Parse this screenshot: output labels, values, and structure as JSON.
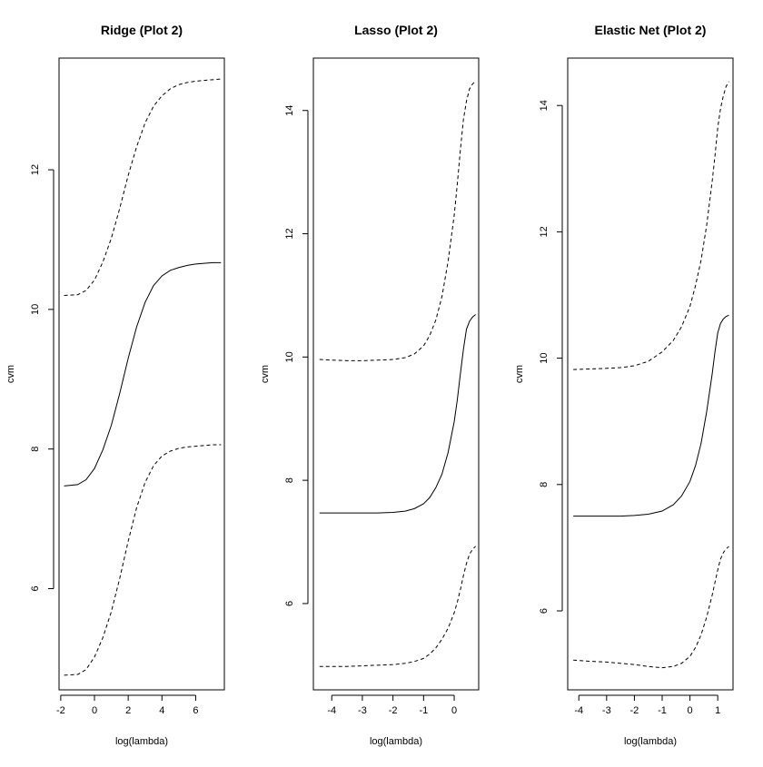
{
  "chart_data": [
    {
      "type": "line",
      "title": "Ridge (Plot 2)",
      "xlabel": "log(lambda)",
      "ylabel": "cvm",
      "xlim": [
        -2.1,
        7.7
      ],
      "ylim": [
        4.55,
        13.6
      ],
      "x_ticks": [
        -2,
        0,
        2,
        4,
        6
      ],
      "y_ticks": [
        6,
        8,
        10,
        12
      ],
      "grid": false,
      "legend": "none",
      "series": [
        {
          "style": "dashed",
          "x": [
            -1.8,
            -1.0,
            -0.5,
            0.0,
            0.5,
            1.0,
            1.5,
            2.0,
            2.5,
            3.0,
            3.5,
            4.0,
            4.5,
            5.0,
            5.5,
            6.0,
            6.5,
            7.0,
            7.5
          ],
          "y": [
            10.2,
            10.21,
            10.27,
            10.42,
            10.68,
            11.02,
            11.45,
            11.92,
            12.33,
            12.67,
            12.91,
            13.06,
            13.16,
            13.22,
            13.25,
            13.27,
            13.28,
            13.29,
            13.3
          ]
        },
        {
          "style": "solid",
          "x": [
            -1.8,
            -1.0,
            -0.5,
            0.0,
            0.5,
            1.0,
            1.5,
            2.0,
            2.5,
            3.0,
            3.5,
            4.0,
            4.5,
            5.0,
            5.5,
            6.0,
            6.5,
            7.0,
            7.5
          ],
          "y": [
            7.47,
            7.49,
            7.56,
            7.72,
            7.99,
            8.34,
            8.8,
            9.3,
            9.75,
            10.1,
            10.34,
            10.48,
            10.56,
            10.6,
            10.63,
            10.65,
            10.66,
            10.67,
            10.67
          ]
        },
        {
          "style": "dashed",
          "x": [
            -1.8,
            -1.0,
            -0.5,
            0.0,
            0.5,
            1.0,
            1.5,
            2.0,
            2.5,
            3.0,
            3.5,
            4.0,
            4.5,
            5.0,
            5.5,
            6.0,
            6.5,
            7.0,
            7.5
          ],
          "y": [
            4.76,
            4.77,
            4.84,
            5.02,
            5.3,
            5.67,
            6.15,
            6.68,
            7.16,
            7.52,
            7.76,
            7.9,
            7.97,
            8.01,
            8.03,
            8.04,
            8.05,
            8.06,
            8.06
          ]
        }
      ]
    },
    {
      "type": "line",
      "title": "Lasso (Plot 2)",
      "xlabel": "log(lambda)",
      "ylabel": "cvm",
      "xlim": [
        -4.6,
        0.8
      ],
      "ylim": [
        4.6,
        14.85
      ],
      "x_ticks": [
        -4,
        -3,
        -2,
        -1,
        0
      ],
      "y_ticks": [
        6,
        8,
        10,
        12,
        14
      ],
      "grid": false,
      "legend": "none",
      "series": [
        {
          "style": "dashed",
          "x": [
            -4.4,
            -4.0,
            -3.5,
            -3.0,
            -2.5,
            -2.0,
            -1.6,
            -1.3,
            -1.0,
            -0.8,
            -0.6,
            -0.4,
            -0.2,
            0.0,
            0.1,
            0.2,
            0.3,
            0.4,
            0.5,
            0.6,
            0.7
          ],
          "y": [
            9.96,
            9.95,
            9.94,
            9.94,
            9.95,
            9.96,
            9.99,
            10.05,
            10.18,
            10.35,
            10.6,
            10.98,
            11.55,
            12.3,
            12.8,
            13.35,
            13.85,
            14.15,
            14.35,
            14.43,
            14.48
          ]
        },
        {
          "style": "solid",
          "x": [
            -4.4,
            -4.0,
            -3.5,
            -3.0,
            -2.5,
            -2.0,
            -1.6,
            -1.3,
            -1.0,
            -0.8,
            -0.6,
            -0.4,
            -0.2,
            0.0,
            0.1,
            0.2,
            0.3,
            0.4,
            0.5,
            0.6,
            0.7
          ],
          "y": [
            7.47,
            7.47,
            7.47,
            7.47,
            7.47,
            7.48,
            7.5,
            7.54,
            7.62,
            7.72,
            7.88,
            8.1,
            8.45,
            8.95,
            9.3,
            9.72,
            10.12,
            10.45,
            10.58,
            10.65,
            10.69
          ]
        },
        {
          "style": "dashed",
          "x": [
            -4.4,
            -4.0,
            -3.5,
            -3.0,
            -2.5,
            -2.0,
            -1.6,
            -1.3,
            -1.0,
            -0.8,
            -0.6,
            -0.4,
            -0.2,
            0.0,
            0.1,
            0.2,
            0.3,
            0.4,
            0.5,
            0.6,
            0.7
          ],
          "y": [
            4.98,
            4.98,
            4.98,
            4.99,
            5.0,
            5.01,
            5.03,
            5.06,
            5.11,
            5.18,
            5.28,
            5.42,
            5.6,
            5.85,
            6.02,
            6.22,
            6.45,
            6.65,
            6.8,
            6.88,
            6.93
          ]
        }
      ]
    },
    {
      "type": "line",
      "title": "Elastic Net (Plot 2)",
      "xlabel": "log(lambda)",
      "ylabel": "cvm",
      "xlim": [
        -4.4,
        1.55
      ],
      "ylim": [
        4.75,
        14.75
      ],
      "x_ticks": [
        -4,
        -3,
        -2,
        -1,
        0,
        1
      ],
      "y_ticks": [
        6,
        8,
        10,
        12,
        14
      ],
      "grid": false,
      "legend": "none",
      "series": [
        {
          "style": "dashed",
          "x": [
            -4.2,
            -3.5,
            -3.0,
            -2.5,
            -2.0,
            -1.5,
            -1.0,
            -0.6,
            -0.3,
            0.0,
            0.2,
            0.4,
            0.6,
            0.8,
            0.9,
            1.0,
            1.1,
            1.2,
            1.3,
            1.4
          ],
          "y": [
            9.82,
            9.83,
            9.84,
            9.85,
            9.88,
            9.95,
            10.1,
            10.28,
            10.5,
            10.82,
            11.15,
            11.55,
            12.1,
            12.8,
            13.2,
            13.65,
            13.95,
            14.15,
            14.3,
            14.38
          ]
        },
        {
          "style": "solid",
          "x": [
            -4.2,
            -3.5,
            -3.0,
            -2.5,
            -2.0,
            -1.5,
            -1.0,
            -0.6,
            -0.3,
            0.0,
            0.2,
            0.4,
            0.6,
            0.8,
            0.9,
            1.0,
            1.1,
            1.2,
            1.3,
            1.4
          ],
          "y": [
            7.5,
            7.5,
            7.5,
            7.5,
            7.51,
            7.53,
            7.58,
            7.68,
            7.82,
            8.05,
            8.3,
            8.65,
            9.15,
            9.75,
            10.1,
            10.4,
            10.55,
            10.62,
            10.66,
            10.68
          ]
        },
        {
          "style": "dashed",
          "x": [
            -4.2,
            -3.5,
            -3.0,
            -2.5,
            -2.0,
            -1.5,
            -1.0,
            -0.6,
            -0.3,
            0.0,
            0.2,
            0.4,
            0.6,
            0.8,
            0.9,
            1.0,
            1.1,
            1.2,
            1.3,
            1.4
          ],
          "y": [
            5.22,
            5.2,
            5.19,
            5.17,
            5.15,
            5.12,
            5.1,
            5.12,
            5.17,
            5.28,
            5.42,
            5.62,
            5.9,
            6.25,
            6.45,
            6.65,
            6.82,
            6.92,
            6.98,
            7.02
          ]
        }
      ]
    }
  ]
}
